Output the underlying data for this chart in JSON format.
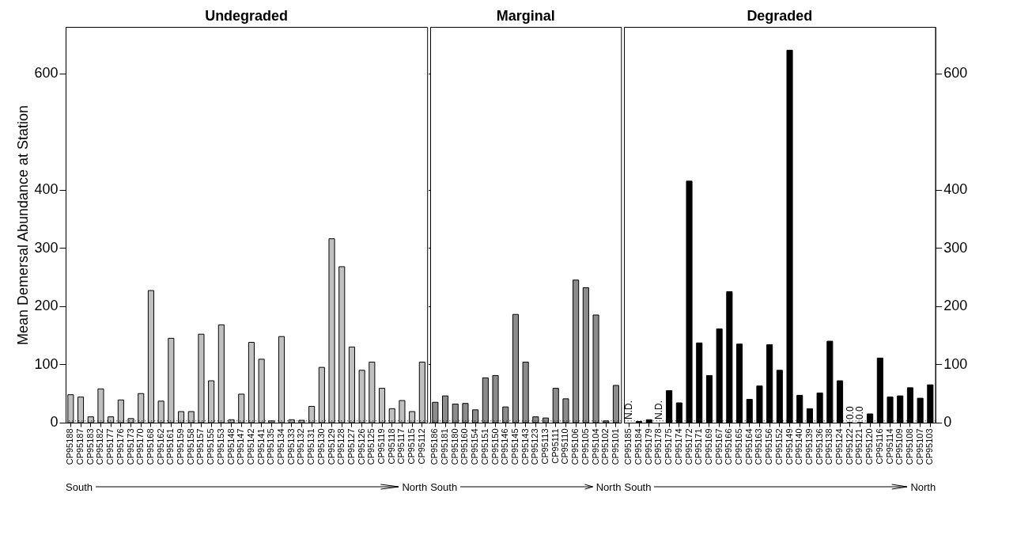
{
  "chart_data": [
    {
      "type": "bar",
      "title": "Undegraded",
      "ylabel": "Mean Demersal Abundance at Station",
      "color": "#c0c0c0",
      "ylim": [
        0,
        680
      ],
      "yticks": [
        0,
        100,
        200,
        300,
        400,
        600
      ],
      "categories": [
        "CP95188",
        "CP95187",
        "CP95183",
        "CP95182",
        "CP95177",
        "CP95176",
        "CP95173",
        "CP95170",
        "CP95168",
        "CP95162",
        "CP95161",
        "CP95159",
        "CP95158",
        "CP95157",
        "CP95155",
        "CP95153",
        "CP95148",
        "CP95147",
        "CP95142",
        "CP95141",
        "CP95135",
        "CP95134",
        "CP95133",
        "CP95132",
        "CP95131",
        "CP95130",
        "CP95129",
        "CP95128",
        "CP95127",
        "CP95126",
        "CP95125",
        "CP95119",
        "CP95118",
        "CP95117",
        "CP95115",
        "CP95112"
      ],
      "values": [
        48,
        44,
        10,
        58,
        10,
        39,
        7,
        50,
        227,
        37,
        145,
        19,
        19,
        152,
        72,
        168,
        5,
        49,
        138,
        109,
        3,
        148,
        5,
        4,
        28,
        95,
        316,
        268,
        130,
        90,
        104,
        59,
        24,
        38,
        19,
        104
      ],
      "ref_lines": [
        {
          "axis": "y",
          "value": 3,
          "line_style": "dotted"
        }
      ],
      "annotations": [
        "South",
        "North"
      ]
    },
    {
      "type": "bar",
      "title": "Marginal",
      "color": "#8c8c8c",
      "ylim": [
        0,
        680
      ],
      "yticks": [
        0,
        100,
        200,
        300,
        400,
        600
      ],
      "tick_labels": "x",
      "categories": [
        "CP95186",
        "CP95181",
        "CP95180",
        "CP95160",
        "CP95154",
        "CP95151",
        "CP95150",
        "CP95146",
        "CP95145",
        "CP95143",
        "CP95123",
        "CP95113",
        "CP95111",
        "CP95110",
        "CP95106",
        "CP95105",
        "CP95104",
        "CP95102",
        "CP95101"
      ],
      "values": [
        35,
        46,
        32,
        33,
        22,
        77,
        81,
        27,
        186,
        104,
        10,
        8,
        59,
        41,
        245,
        232,
        185,
        3,
        64
      ],
      "ref_lines": [
        {
          "axis": "y",
          "value": 3,
          "line_style": "dotted"
        }
      ],
      "annotations": [
        "South",
        "North"
      ]
    },
    {
      "type": "bar",
      "title": "Degraded",
      "color": "#000000",
      "ylim": [
        0,
        680
      ],
      "yticks": [
        0,
        100,
        200,
        300,
        400,
        600
      ],
      "categories": [
        "CP95185",
        "CP95184",
        "CP95179",
        "CP95178",
        "CP95175",
        "CP95174",
        "CP95172",
        "CP95171",
        "CP95169",
        "CP95167",
        "CP95166",
        "CP95165",
        "CP95164",
        "CP95163",
        "CP95156",
        "CP95152",
        "CP95149",
        "CP95140",
        "CP95139",
        "CP95136",
        "CP95138",
        "CP95124",
        "CP95122",
        "CP95121",
        "CP95120",
        "CP95116",
        "CP95114",
        "CP95109",
        "CP95108",
        "CP95107",
        "CP95103"
      ],
      "values": [
        null,
        2,
        5,
        null,
        55,
        34,
        415,
        137,
        81,
        161,
        225,
        135,
        40,
        63,
        134,
        90,
        640,
        47,
        24,
        51,
        140,
        72,
        0,
        0,
        15,
        111,
        44,
        46,
        60,
        42,
        65
      ],
      "value_labels": [
        "N.D.",
        null,
        null,
        "N.D.",
        null,
        null,
        null,
        null,
        null,
        null,
        null,
        null,
        null,
        null,
        null,
        null,
        null,
        null,
        null,
        null,
        null,
        null,
        "0.0",
        "0.0",
        null,
        null,
        null,
        null,
        null,
        null,
        null
      ],
      "ref_lines": [
        {
          "axis": "y",
          "value": 3,
          "line_style": "dotted"
        }
      ],
      "annotations": [
        "South",
        "North"
      ]
    }
  ]
}
